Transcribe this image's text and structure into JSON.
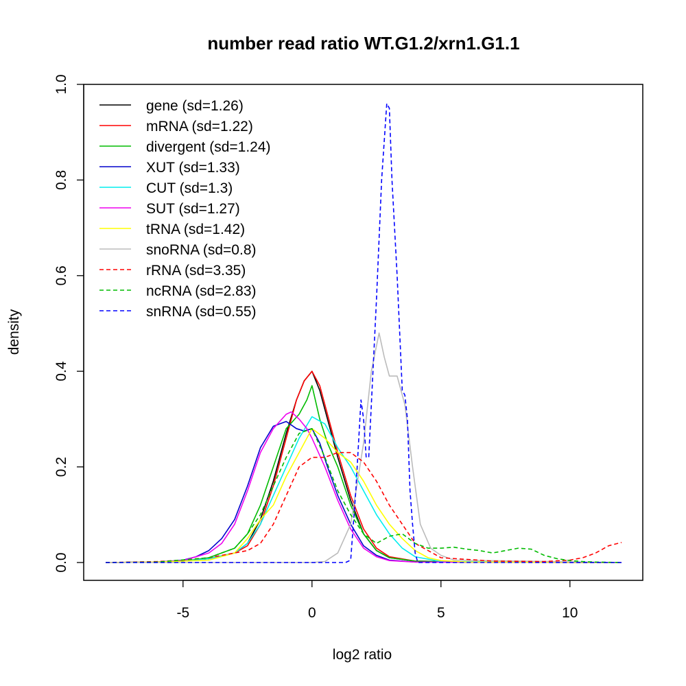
{
  "chart_data": {
    "type": "line",
    "title": "number read ratio WT.G1.2/xrn1.G1.1",
    "xlabel": "log2 ratio",
    "ylabel": "density",
    "xlim": [
      -9,
      13
    ],
    "ylim": [
      -0.04,
      1.0
    ],
    "xticks": [
      -5,
      0,
      5,
      10
    ],
    "xtick_labels": [
      "-5",
      "0",
      "5",
      "10"
    ],
    "yticks": [
      0.0,
      0.2,
      0.4,
      0.6,
      0.8,
      1.0
    ],
    "ytick_labels": [
      "0.0",
      "0.2",
      "0.4",
      "0.6",
      "0.8",
      "1.0"
    ],
    "grid": false,
    "legend_position": "top-left",
    "series": [
      {
        "name": "gene (sd=1.26)",
        "color": "#000000",
        "dash": "solid",
        "x": [
          -8,
          -6,
          -5,
          -4,
          -3,
          -2.5,
          -2,
          -1.5,
          -1,
          -0.6,
          -0.3,
          0,
          0.3,
          0.6,
          1,
          1.5,
          2,
          2.5,
          3,
          4,
          6,
          12
        ],
        "y": [
          0,
          0.001,
          0.003,
          0.008,
          0.02,
          0.04,
          0.09,
          0.17,
          0.27,
          0.34,
          0.38,
          0.4,
          0.36,
          0.3,
          0.22,
          0.13,
          0.06,
          0.025,
          0.01,
          0.003,
          0.001,
          0
        ]
      },
      {
        "name": "mRNA (sd=1.22)",
        "color": "#ff0000",
        "dash": "solid",
        "x": [
          -8,
          -6,
          -5,
          -4,
          -3,
          -2.5,
          -2,
          -1.5,
          -1,
          -0.6,
          -0.3,
          0,
          0.3,
          0.6,
          1,
          1.5,
          2,
          2.5,
          3,
          4,
          6,
          12
        ],
        "y": [
          0,
          0.001,
          0.003,
          0.008,
          0.02,
          0.035,
          0.08,
          0.16,
          0.26,
          0.34,
          0.38,
          0.4,
          0.37,
          0.31,
          0.23,
          0.14,
          0.07,
          0.03,
          0.012,
          0.003,
          0.001,
          0
        ]
      },
      {
        "name": "divergent (sd=1.24)",
        "color": "#00bb00",
        "dash": "solid",
        "x": [
          -8,
          -6,
          -5,
          -4,
          -3,
          -2.5,
          -2,
          -1.5,
          -1,
          -0.5,
          -0.2,
          0,
          0.3,
          0.6,
          1,
          1.5,
          2,
          2.5,
          3,
          4,
          6,
          12
        ],
        "y": [
          0,
          0.001,
          0.003,
          0.01,
          0.03,
          0.06,
          0.12,
          0.2,
          0.28,
          0.31,
          0.34,
          0.37,
          0.3,
          0.25,
          0.2,
          0.12,
          0.06,
          0.025,
          0.01,
          0.003,
          0.001,
          0
        ]
      },
      {
        "name": "XUT (sd=1.33)",
        "color": "#0000cc",
        "dash": "solid",
        "x": [
          -8,
          -6,
          -5,
          -4.5,
          -4,
          -3.5,
          -3,
          -2.5,
          -2,
          -1.5,
          -1,
          -0.6,
          -0.3,
          0,
          0.3,
          0.6,
          1,
          1.5,
          2,
          2.5,
          3,
          4,
          12
        ],
        "y": [
          0,
          0.001,
          0.005,
          0.012,
          0.025,
          0.05,
          0.09,
          0.16,
          0.24,
          0.285,
          0.295,
          0.28,
          0.275,
          0.28,
          0.25,
          0.2,
          0.14,
          0.08,
          0.035,
          0.015,
          0.005,
          0.001,
          0
        ]
      },
      {
        "name": "CUT (sd=1.3)",
        "color": "#00eeee",
        "dash": "solid",
        "x": [
          -8,
          -6,
          -5,
          -4,
          -3,
          -2.5,
          -2,
          -1.5,
          -1,
          -0.5,
          0,
          0.5,
          1,
          1.5,
          2,
          2.5,
          3,
          3.5,
          4,
          5,
          12
        ],
        "y": [
          0,
          0.001,
          0.003,
          0.008,
          0.02,
          0.04,
          0.08,
          0.14,
          0.2,
          0.26,
          0.305,
          0.29,
          0.24,
          0.2,
          0.15,
          0.1,
          0.06,
          0.03,
          0.012,
          0.002,
          0
        ]
      },
      {
        "name": "SUT (sd=1.27)",
        "color": "#ee00ee",
        "dash": "solid",
        "x": [
          -8,
          -6,
          -5,
          -4,
          -3.5,
          -3,
          -2.5,
          -2,
          -1.5,
          -1,
          -0.8,
          -0.5,
          -0.2,
          0,
          0.5,
          1,
          1.5,
          2,
          2.5,
          3,
          4,
          12
        ],
        "y": [
          0,
          0.001,
          0.004,
          0.02,
          0.04,
          0.08,
          0.15,
          0.23,
          0.28,
          0.31,
          0.315,
          0.3,
          0.28,
          0.26,
          0.2,
          0.13,
          0.07,
          0.03,
          0.012,
          0.004,
          0.001,
          0
        ]
      },
      {
        "name": "tRNA (sd=1.42)",
        "color": "#ffff00",
        "dash": "solid",
        "x": [
          -8,
          -6,
          -4,
          -3,
          -2.5,
          -2,
          -1.5,
          -1,
          -0.5,
          0,
          0.5,
          1,
          1.5,
          2,
          2.5,
          3,
          3.5,
          4,
          4.5,
          5,
          6,
          12
        ],
        "y": [
          0,
          0.001,
          0.005,
          0.02,
          0.05,
          0.09,
          0.12,
          0.18,
          0.23,
          0.28,
          0.26,
          0.23,
          0.21,
          0.17,
          0.12,
          0.08,
          0.05,
          0.025,
          0.01,
          0.004,
          0.001,
          0
        ]
      },
      {
        "name": "snoRNA (sd=0.8)",
        "color": "#bbbbbb",
        "dash": "solid",
        "x": [
          -8,
          0,
          0.5,
          1,
          1.5,
          2,
          2.3,
          2.6,
          2.8,
          3,
          3.3,
          3.6,
          3.9,
          4.2,
          4.6,
          5,
          5.5,
          12
        ],
        "y": [
          0,
          0,
          0.002,
          0.02,
          0.08,
          0.25,
          0.4,
          0.48,
          0.43,
          0.39,
          0.39,
          0.33,
          0.2,
          0.08,
          0.03,
          0.015,
          0.005,
          0
        ]
      },
      {
        "name": "rRNA (sd=3.35)",
        "color": "#ff0000",
        "dash": "dashed",
        "x": [
          -8,
          -6,
          -5,
          -4,
          -3,
          -2.5,
          -2,
          -1.5,
          -1,
          -0.5,
          0,
          0.5,
          1,
          1.5,
          2,
          2.5,
          3,
          3.5,
          4,
          5,
          7,
          9,
          10,
          10.5,
          11,
          11.5,
          12
        ],
        "y": [
          0,
          0.002,
          0.005,
          0.01,
          0.02,
          0.025,
          0.04,
          0.08,
          0.14,
          0.2,
          0.22,
          0.22,
          0.23,
          0.23,
          0.21,
          0.17,
          0.12,
          0.08,
          0.04,
          0.01,
          0.003,
          0.002,
          0.005,
          0.01,
          0.02,
          0.035,
          0.042
        ]
      },
      {
        "name": "ncRNA (sd=2.83)",
        "color": "#00bb00",
        "dash": "dashed",
        "x": [
          -8,
          -6,
          -4,
          -3,
          -2.5,
          -2,
          -1.5,
          -1,
          -0.5,
          0,
          0.5,
          1,
          1.5,
          2,
          2.5,
          3,
          3.5,
          4,
          4.5,
          5,
          5.5,
          6,
          6.5,
          7,
          7.5,
          8,
          8.5,
          9,
          9.5,
          10,
          10.5,
          11,
          12
        ],
        "y": [
          0,
          0.001,
          0.01,
          0.03,
          0.06,
          0.1,
          0.16,
          0.22,
          0.27,
          0.28,
          0.22,
          0.15,
          0.1,
          0.06,
          0.04,
          0.055,
          0.06,
          0.04,
          0.03,
          0.03,
          0.032,
          0.028,
          0.025,
          0.02,
          0.025,
          0.03,
          0.028,
          0.015,
          0.008,
          0.004,
          0.002,
          0.001,
          0
        ]
      },
      {
        "name": "snRNA (sd=0.55)",
        "color": "#0000ff",
        "dash": "dashed",
        "x": [
          -8,
          1.3,
          1.5,
          1.7,
          1.9,
          2.0,
          2.1,
          2.2,
          2.3,
          2.5,
          2.7,
          2.9,
          3.0,
          3.1,
          3.3,
          3.5,
          3.6,
          3.7,
          3.8,
          3.9,
          4.0,
          4.1,
          12
        ],
        "y": [
          0,
          0,
          0.005,
          0.15,
          0.34,
          0.3,
          0.22,
          0.22,
          0.33,
          0.55,
          0.8,
          0.96,
          0.95,
          0.8,
          0.6,
          0.36,
          0.35,
          0.3,
          0.15,
          0.08,
          0.02,
          0.0,
          0
        ]
      }
    ]
  }
}
